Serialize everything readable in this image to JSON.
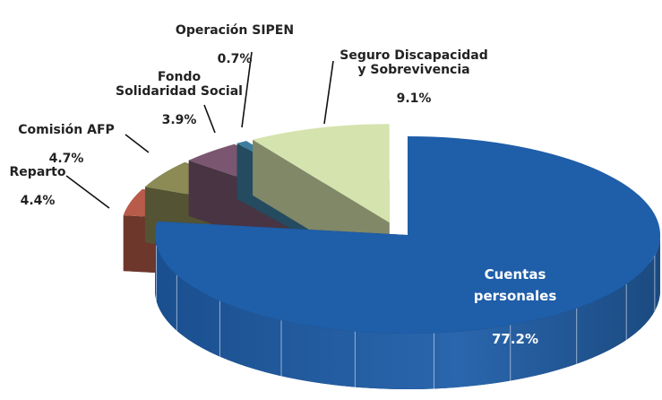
{
  "chart_data": {
    "type": "pie3d",
    "categories": [
      "Cuentas personales",
      "Reparto",
      "Comisión AFP",
      "Fondo\nSolidaridad Social",
      "Operación SIPEN",
      "Seguro Discapacidad\ny Sobrevivencia"
    ],
    "values": [
      77.2,
      4.4,
      4.7,
      3.9,
      0.7,
      9.1
    ],
    "value_labels": [
      "77.2%",
      "4.4%",
      "4.7%",
      "3.9%",
      "0.7%",
      "9.1%"
    ],
    "colors": [
      "#1f5ea8",
      "#b85b4a",
      "#8c8a55",
      "#7a5670",
      "#3c7d9e",
      "#d5e3ae"
    ]
  }
}
